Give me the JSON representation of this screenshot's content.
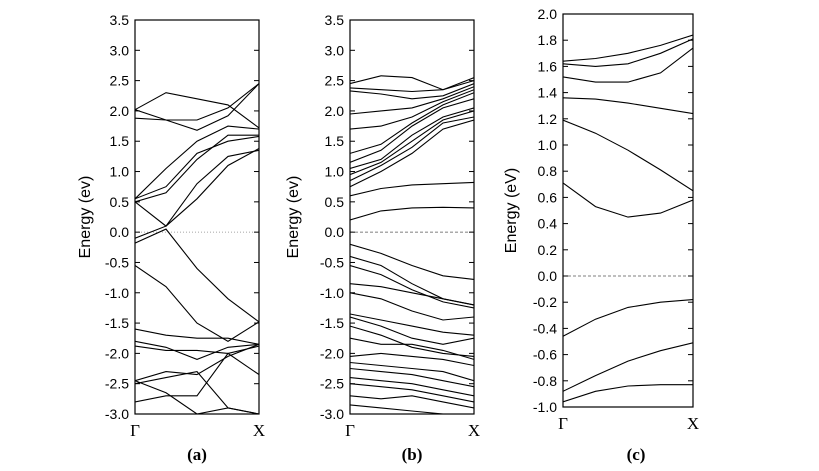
{
  "chart_data": [
    {
      "type": "line",
      "panel_label": "(a)",
      "ylabel": "Energy (ev)",
      "ylim": [
        -3.0,
        3.5
      ],
      "yticks": [
        3.5,
        3.0,
        2.5,
        2.0,
        1.5,
        1.0,
        0.5,
        0.0,
        -0.5,
        -1.0,
        -1.5,
        -2.0,
        -2.5,
        -3.0
      ],
      "ytick_labels": [
        "3.5",
        "3.0",
        "2.5",
        "2.0",
        "1.5",
        "1.0",
        "0.5",
        "0.0",
        "-0.5",
        "-1.0",
        "-1.5",
        "-2.0",
        "-2.5",
        "-3.0"
      ],
      "xticks": [
        "Γ",
        "X"
      ],
      "fermi_level": 0.0,
      "fermi_style": "dotted",
      "x": [
        0,
        0.25,
        0.5,
        0.75,
        1
      ],
      "series": [
        {
          "name": "band-1",
          "values": [
            2.02,
            2.3,
            2.2,
            2.1,
            1.72
          ]
        },
        {
          "name": "band-2",
          "values": [
            2.02,
            1.85,
            1.85,
            2.05,
            2.45
          ]
        },
        {
          "name": "band-3",
          "values": [
            1.88,
            1.85,
            1.68,
            1.92,
            2.45
          ]
        },
        {
          "name": "band-4",
          "values": [
            0.55,
            1.05,
            1.5,
            1.75,
            1.7
          ]
        },
        {
          "name": "band-5",
          "values": [
            0.55,
            0.75,
            1.3,
            1.5,
            1.58
          ]
        },
        {
          "name": "band-6",
          "values": [
            0.5,
            0.65,
            1.2,
            1.6,
            1.6
          ]
        },
        {
          "name": "band-7",
          "values": [
            0.5,
            0.1,
            0.55,
            1.1,
            1.38
          ]
        },
        {
          "name": "band-8",
          "values": [
            -0.1,
            0.1,
            0.8,
            1.25,
            1.35
          ]
        },
        {
          "name": "band-9",
          "values": [
            -0.18,
            0.05,
            -0.6,
            -1.1,
            -1.48
          ]
        },
        {
          "name": "band-10",
          "values": [
            -0.55,
            -0.9,
            -1.5,
            -1.8,
            -1.48
          ]
        },
        {
          "name": "band-11",
          "values": [
            -1.6,
            -1.7,
            -1.75,
            -1.75,
            -1.85
          ]
        },
        {
          "name": "band-12",
          "values": [
            -1.8,
            -1.9,
            -2.1,
            -1.9,
            -1.85
          ]
        },
        {
          "name": "band-13",
          "values": [
            -1.88,
            -1.95,
            -1.95,
            -2.0,
            -1.88
          ]
        },
        {
          "name": "band-14",
          "values": [
            -2.45,
            -2.3,
            -2.35,
            -2.05,
            -1.85
          ]
        },
        {
          "name": "band-15",
          "values": [
            -2.5,
            -2.4,
            -2.3,
            -2.9,
            -3.0
          ]
        },
        {
          "name": "band-16",
          "values": [
            -2.8,
            -2.7,
            -2.7,
            -2.0,
            -2.35
          ]
        },
        {
          "name": "band-17",
          "values": [
            -2.45,
            -2.65,
            -3.0,
            -2.9,
            -3.0
          ]
        }
      ]
    },
    {
      "type": "line",
      "panel_label": "(b)",
      "ylabel": "Energy (ev)",
      "ylim": [
        -3.0,
        3.5
      ],
      "yticks": [
        3.5,
        3.0,
        2.5,
        2.0,
        1.5,
        1.0,
        0.5,
        0.0,
        -0.5,
        -1.0,
        -1.5,
        -2.0,
        -2.5,
        -3.0
      ],
      "ytick_labels": [
        "3.5",
        "3.0",
        "2.5",
        "2.0",
        "1.5",
        "1.0",
        "0.5",
        "0.0",
        "-0.5",
        "-1.0",
        "-1.5",
        "-2.0",
        "-2.5",
        "-3.0"
      ],
      "xticks": [
        "Γ",
        "X"
      ],
      "fermi_level": 0.0,
      "fermi_style": "dashed",
      "x": [
        0,
        0.25,
        0.5,
        0.75,
        1
      ],
      "series": [
        {
          "name": "band-1",
          "values": [
            2.45,
            2.58,
            2.55,
            2.35,
            2.55
          ]
        },
        {
          "name": "band-2",
          "values": [
            2.38,
            2.35,
            2.32,
            2.35,
            2.5
          ]
        },
        {
          "name": "band-3",
          "values": [
            2.33,
            2.28,
            2.2,
            2.25,
            2.45
          ]
        },
        {
          "name": "band-4",
          "values": [
            1.95,
            2.0,
            2.05,
            2.2,
            2.4
          ]
        },
        {
          "name": "band-5",
          "values": [
            1.7,
            1.75,
            1.9,
            2.15,
            2.35
          ]
        },
        {
          "name": "band-6",
          "values": [
            1.3,
            1.45,
            1.8,
            2.1,
            2.3
          ]
        },
        {
          "name": "band-7",
          "values": [
            1.15,
            1.35,
            1.75,
            2.05,
            2.2
          ]
        },
        {
          "name": "band-8",
          "values": [
            1.05,
            1.2,
            1.6,
            1.9,
            2.05
          ]
        },
        {
          "name": "band-9",
          "values": [
            0.95,
            1.15,
            1.5,
            1.85,
            2.0
          ]
        },
        {
          "name": "band-10",
          "values": [
            0.85,
            1.1,
            1.4,
            1.8,
            1.9
          ]
        },
        {
          "name": "band-11",
          "values": [
            0.75,
            1.0,
            1.3,
            1.7,
            1.85
          ]
        },
        {
          "name": "band-12",
          "values": [
            0.6,
            0.72,
            0.78,
            0.8,
            0.82
          ]
        },
        {
          "name": "band-13",
          "values": [
            0.2,
            0.35,
            0.4,
            0.41,
            0.4
          ]
        },
        {
          "name": "band-14",
          "values": [
            -0.2,
            -0.35,
            -0.55,
            -0.72,
            -0.78
          ]
        },
        {
          "name": "band-15",
          "values": [
            -0.4,
            -0.55,
            -0.85,
            -1.1,
            -1.2
          ]
        },
        {
          "name": "band-16",
          "values": [
            -0.55,
            -0.7,
            -0.95,
            -1.15,
            -1.25
          ]
        },
        {
          "name": "band-17",
          "values": [
            -0.85,
            -0.9,
            -1.0,
            -1.1,
            -1.2
          ]
        },
        {
          "name": "band-18",
          "values": [
            -1.0,
            -1.1,
            -1.3,
            -1.45,
            -1.4
          ]
        },
        {
          "name": "band-19",
          "values": [
            -1.35,
            -1.45,
            -1.55,
            -1.65,
            -1.7
          ]
        },
        {
          "name": "band-20",
          "values": [
            -1.4,
            -1.55,
            -1.75,
            -1.85,
            -1.75
          ]
        },
        {
          "name": "band-21",
          "values": [
            -1.55,
            -1.7,
            -1.9,
            -2.0,
            -2.05
          ]
        },
        {
          "name": "band-22",
          "values": [
            -1.75,
            -1.85,
            -1.85,
            -1.95,
            -2.1
          ]
        },
        {
          "name": "band-23",
          "values": [
            -2.05,
            -2.0,
            -2.05,
            -2.1,
            -2.2
          ]
        },
        {
          "name": "band-24",
          "values": [
            -2.15,
            -2.2,
            -2.25,
            -2.3,
            -2.45
          ]
        },
        {
          "name": "band-25",
          "values": [
            -2.25,
            -2.3,
            -2.35,
            -2.45,
            -2.55
          ]
        },
        {
          "name": "band-26",
          "values": [
            -2.4,
            -2.45,
            -2.5,
            -2.6,
            -2.7
          ]
        },
        {
          "name": "band-27",
          "values": [
            -2.5,
            -2.55,
            -2.6,
            -2.7,
            -2.8
          ]
        },
        {
          "name": "band-28",
          "values": [
            -2.7,
            -2.75,
            -2.7,
            -2.8,
            -2.9
          ]
        },
        {
          "name": "band-29",
          "values": [
            -2.85,
            -2.9,
            -2.95,
            -3.0,
            -3.0
          ]
        }
      ]
    },
    {
      "type": "line",
      "panel_label": "(c)",
      "ylabel": "Energy (eV)",
      "ylim": [
        -1.0,
        2.0
      ],
      "yticks": [
        2.0,
        1.8,
        1.6,
        1.4,
        1.2,
        1.0,
        0.8,
        0.6,
        0.4,
        0.2,
        0.0,
        -0.2,
        -0.4,
        -0.6,
        -0.8,
        -1.0
      ],
      "ytick_labels": [
        "2.0",
        "1.8",
        "1.6",
        "1.4",
        "1.2",
        "1.0",
        "0.8",
        "0.6",
        "0.4",
        "0.2",
        "0.0",
        "-0.2",
        "-0.4",
        "-0.6",
        "-0.8",
        "-1.0"
      ],
      "xticks": [
        "Γ",
        "X"
      ],
      "fermi_level": 0.0,
      "fermi_style": "dashed",
      "x": [
        0,
        0.25,
        0.5,
        0.75,
        1
      ],
      "series": [
        {
          "name": "band-1",
          "values": [
            1.64,
            1.66,
            1.7,
            1.76,
            1.84
          ]
        },
        {
          "name": "band-2",
          "values": [
            1.62,
            1.6,
            1.62,
            1.7,
            1.81
          ]
        },
        {
          "name": "band-3",
          "values": [
            1.52,
            1.48,
            1.48,
            1.55,
            1.74
          ]
        },
        {
          "name": "band-4",
          "values": [
            1.36,
            1.35,
            1.32,
            1.28,
            1.24
          ]
        },
        {
          "name": "band-5",
          "values": [
            1.19,
            1.09,
            0.96,
            0.81,
            0.65
          ]
        },
        {
          "name": "band-6",
          "values": [
            0.71,
            0.53,
            0.45,
            0.48,
            0.58
          ]
        },
        {
          "name": "band-7",
          "values": [
            -0.46,
            -0.33,
            -0.24,
            -0.2,
            -0.18
          ]
        },
        {
          "name": "band-8",
          "values": [
            -0.88,
            -0.76,
            -0.65,
            -0.57,
            -0.51
          ]
        },
        {
          "name": "band-9",
          "values": [
            -0.96,
            -0.88,
            -0.84,
            -0.83,
            -0.83
          ]
        }
      ]
    }
  ]
}
